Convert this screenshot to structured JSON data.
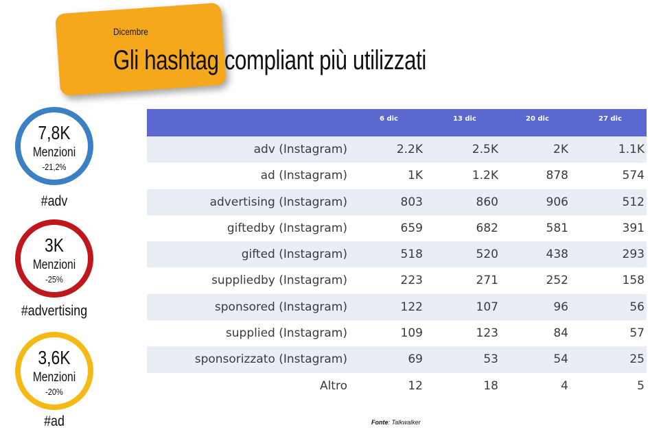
{
  "header": {
    "kicker": "Dicembre",
    "title": "Gli hashtag compliant più utilizzati"
  },
  "stats": [
    {
      "value": "7,8K",
      "label": "Menzioni",
      "change": "-21,2%",
      "tag": "#adv",
      "color": "#3b80c4"
    },
    {
      "value": "3K",
      "label": "Menzioni",
      "change": "-25%",
      "tag": "#advertising",
      "color": "#c0171c"
    },
    {
      "value": "3,6K",
      "label": "Menzioni",
      "change": "-20%",
      "tag": "#ad",
      "color": "#f5b915"
    }
  ],
  "table": {
    "columns": [
      "",
      "6 dic",
      "13 dic",
      "20 dic",
      "27 dic"
    ],
    "header_color": "#5a68cf",
    "rows": [
      {
        "name": "adv (Instagram)",
        "values": [
          "2.2K",
          "2.5K",
          "2K",
          "1.1K"
        ]
      },
      {
        "name": "ad (Instagram)",
        "values": [
          "1K",
          "1.2K",
          "878",
          "574"
        ]
      },
      {
        "name": "advertising (Instagram)",
        "values": [
          "803",
          "860",
          "906",
          "512"
        ]
      },
      {
        "name": "giftedby (Instagram)",
        "values": [
          "659",
          "682",
          "581",
          "391"
        ]
      },
      {
        "name": "gifted (Instagram)",
        "values": [
          "518",
          "520",
          "438",
          "293"
        ]
      },
      {
        "name": "suppliedby (Instagram)",
        "values": [
          "223",
          "271",
          "252",
          "158"
        ]
      },
      {
        "name": "sponsored (Instagram)",
        "values": [
          "122",
          "107",
          "96",
          "56"
        ]
      },
      {
        "name": "supplied (Instagram)",
        "values": [
          "109",
          "123",
          "84",
          "57"
        ]
      },
      {
        "name": "sponsorizzato (Instagram)",
        "values": [
          "69",
          "53",
          "54",
          "25"
        ]
      },
      {
        "name": "Altro",
        "values": [
          "12",
          "18",
          "4",
          "5"
        ]
      }
    ]
  },
  "source": {
    "label": "Fonte",
    "text": ": Talkwalker"
  }
}
